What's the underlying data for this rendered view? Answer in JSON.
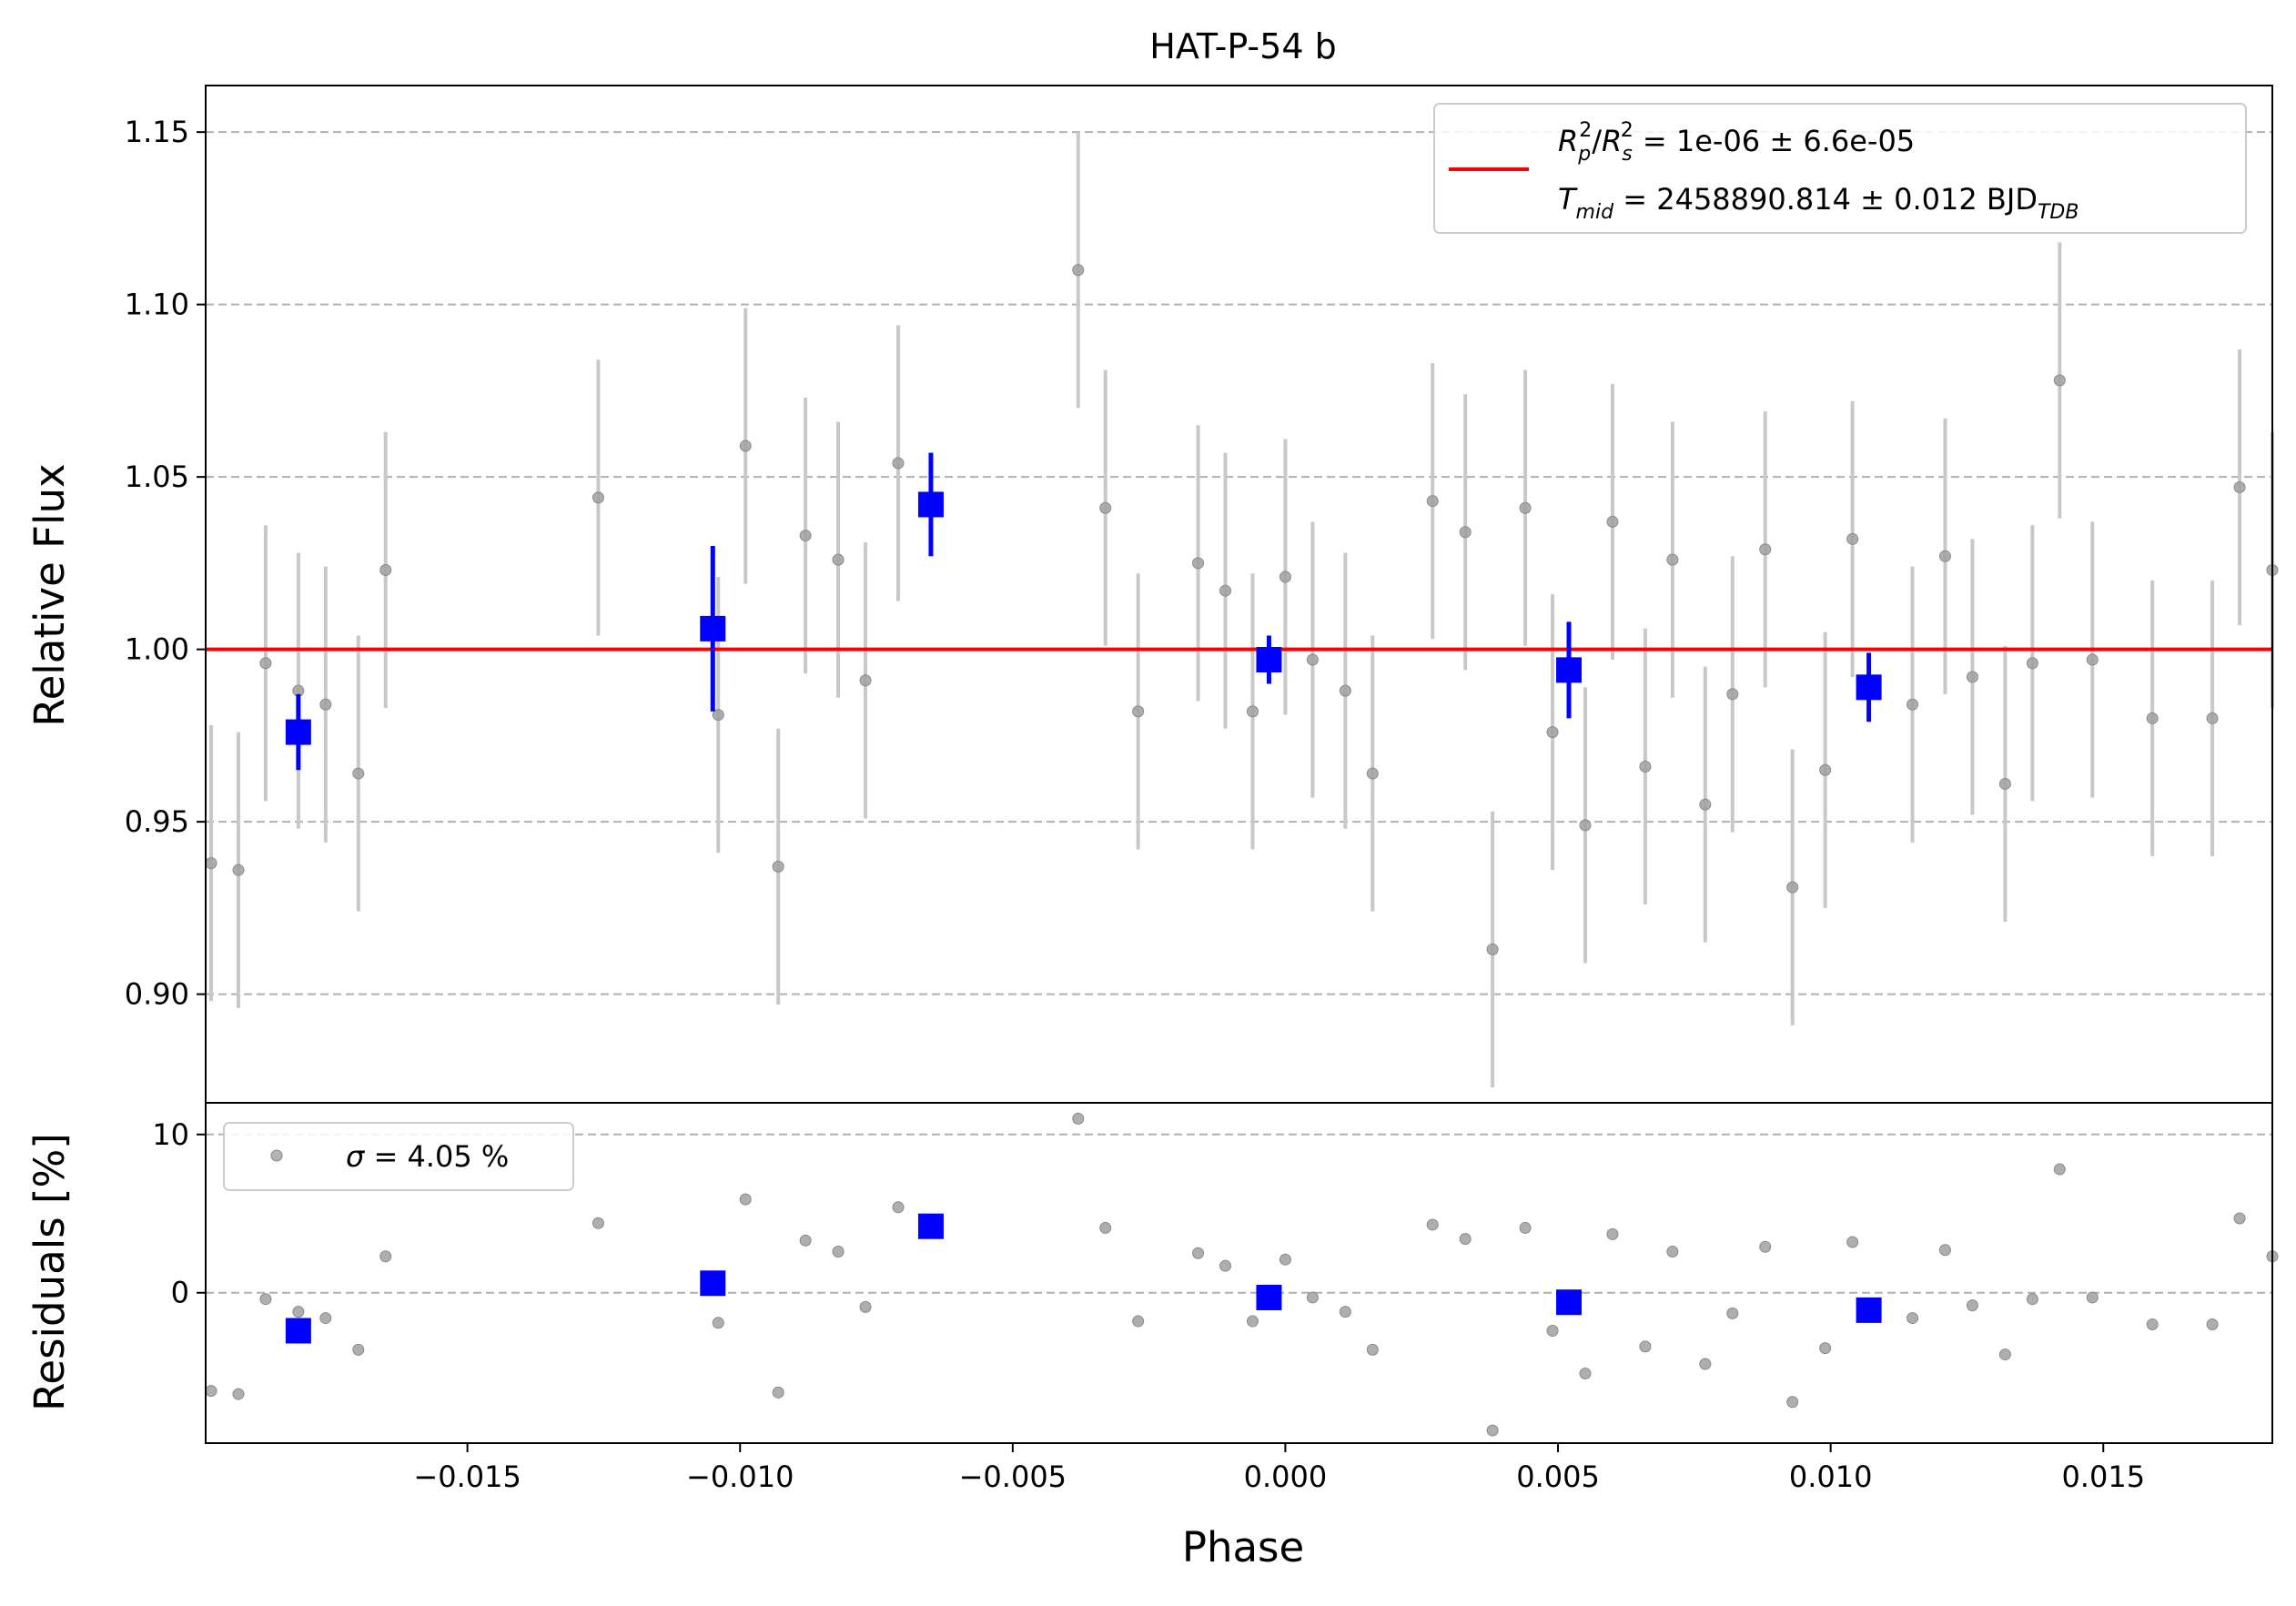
{
  "chart_data": [
    {
      "type": "scatter",
      "title": "HAT-P-54 b",
      "xlabel": "",
      "ylabel": "Relative Flux",
      "xlim": [
        -0.0198,
        0.0181
      ],
      "ylim": [
        0.8685,
        1.1635
      ],
      "grid": "horizontal dashed",
      "yticks": [
        "0.90",
        "0.95",
        "1.00",
        "1.05",
        "1.10",
        "1.15"
      ],
      "model_line": {
        "y": 1.0,
        "color": "#ff0000"
      },
      "legend": {
        "placement": "top-right",
        "line1": {
          "lhs": "R",
          "sub1": "p",
          "sup1": "2",
          "slash": "/",
          "sub2": "s",
          "sup2": "2",
          "rhs": " = 1e-06 ± 6.6e-05"
        },
        "line2": {
          "lhs": "T",
          "sub": "mid",
          "rhs": " = 2458890.814 ± 0.012 BJD",
          "unit_sub": "TDB"
        }
      },
      "raw_points": [
        {
          "x": -0.0197,
          "y": 0.938,
          "err": 0.04
        },
        {
          "x": -0.0192,
          "y": 0.936,
          "err": 0.04
        },
        {
          "x": -0.0187,
          "y": 0.996,
          "err": 0.04
        },
        {
          "x": -0.0181,
          "y": 0.988,
          "err": 0.04
        },
        {
          "x": -0.0176,
          "y": 0.984,
          "err": 0.04
        },
        {
          "x": -0.017,
          "y": 0.964,
          "err": 0.04
        },
        {
          "x": -0.0165,
          "y": 1.023,
          "err": 0.04
        },
        {
          "x": -0.0126,
          "y": 1.044,
          "err": 0.04
        },
        {
          "x": -0.0104,
          "y": 0.981,
          "err": 0.04
        },
        {
          "x": -0.0099,
          "y": 1.059,
          "err": 0.04
        },
        {
          "x": -0.0093,
          "y": 0.937,
          "err": 0.04
        },
        {
          "x": -0.0088,
          "y": 1.033,
          "err": 0.04
        },
        {
          "x": -0.0082,
          "y": 1.026,
          "err": 0.04
        },
        {
          "x": -0.0077,
          "y": 0.991,
          "err": 0.04
        },
        {
          "x": -0.0071,
          "y": 1.054,
          "err": 0.04
        },
        {
          "x": -0.0038,
          "y": 1.11,
          "err": 0.04
        },
        {
          "x": -0.0033,
          "y": 1.041,
          "err": 0.04
        },
        {
          "x": -0.0027,
          "y": 0.982,
          "err": 0.04
        },
        {
          "x": -0.0016,
          "y": 1.025,
          "err": 0.04
        },
        {
          "x": -0.0011,
          "y": 1.017,
          "err": 0.04
        },
        {
          "x": -0.0006,
          "y": 0.982,
          "err": 0.04
        },
        {
          "x": 0.0,
          "y": 1.021,
          "err": 0.04
        },
        {
          "x": 0.0005,
          "y": 0.997,
          "err": 0.04
        },
        {
          "x": 0.0011,
          "y": 0.988,
          "err": 0.04
        },
        {
          "x": 0.0016,
          "y": 0.964,
          "err": 0.04
        },
        {
          "x": 0.0027,
          "y": 1.043,
          "err": 0.04
        },
        {
          "x": 0.0033,
          "y": 1.034,
          "err": 0.04
        },
        {
          "x": 0.0038,
          "y": 0.913,
          "err": 0.04
        },
        {
          "x": 0.0044,
          "y": 1.041,
          "err": 0.04
        },
        {
          "x": 0.0049,
          "y": 0.976,
          "err": 0.04
        },
        {
          "x": 0.0055,
          "y": 0.949,
          "err": 0.04
        },
        {
          "x": 0.006,
          "y": 1.037,
          "err": 0.04
        },
        {
          "x": 0.0066,
          "y": 0.966,
          "err": 0.04
        },
        {
          "x": 0.0071,
          "y": 1.026,
          "err": 0.04
        },
        {
          "x": 0.0077,
          "y": 0.955,
          "err": 0.04
        },
        {
          "x": 0.0082,
          "y": 0.987,
          "err": 0.04
        },
        {
          "x": 0.0088,
          "y": 1.029,
          "err": 0.04
        },
        {
          "x": 0.0093,
          "y": 0.931,
          "err": 0.04
        },
        {
          "x": 0.0099,
          "y": 0.965,
          "err": 0.04
        },
        {
          "x": 0.0104,
          "y": 1.032,
          "err": 0.04
        },
        {
          "x": 0.0115,
          "y": 0.984,
          "err": 0.04
        },
        {
          "x": 0.0121,
          "y": 1.027,
          "err": 0.04
        },
        {
          "x": 0.0126,
          "y": 0.992,
          "err": 0.04
        },
        {
          "x": 0.0132,
          "y": 0.961,
          "err": 0.04
        },
        {
          "x": 0.0137,
          "y": 0.996,
          "err": 0.04
        },
        {
          "x": 0.0142,
          "y": 1.078,
          "err": 0.04
        },
        {
          "x": 0.0148,
          "y": 0.997,
          "err": 0.04
        },
        {
          "x": 0.0159,
          "y": 0.98,
          "err": 0.04
        },
        {
          "x": 0.017,
          "y": 0.98,
          "err": 0.04
        },
        {
          "x": 0.0175,
          "y": 1.047,
          "err": 0.04
        },
        {
          "x": 0.0181,
          "y": 1.023,
          "err": 0.04
        }
      ],
      "binned_points": [
        {
          "x": -0.0181,
          "y": 0.976,
          "err": 0.011
        },
        {
          "x": -0.0105,
          "y": 1.006,
          "err": 0.024
        },
        {
          "x": -0.0065,
          "y": 1.042,
          "err": 0.015
        },
        {
          "x": -0.0003,
          "y": 0.997,
          "err": 0.007
        },
        {
          "x": 0.0052,
          "y": 0.994,
          "err": 0.014
        },
        {
          "x": 0.0107,
          "y": 0.989,
          "err": 0.01
        }
      ]
    },
    {
      "type": "scatter",
      "title": "",
      "xlabel": "Phase",
      "ylabel": "Residuals [%]",
      "xlim": [
        -0.0198,
        0.0181
      ],
      "ylim": [
        -9.5,
        12.0
      ],
      "grid": "horizontal dashed",
      "yticks": [
        "0",
        "10"
      ],
      "xticks": [
        "−0.015",
        "−0.010",
        "−0.005",
        "0.000",
        "0.005",
        "0.010",
        "0.015"
      ],
      "xtick_values": [
        -0.015,
        -0.01,
        -0.005,
        0.0,
        0.005,
        0.01,
        0.015
      ],
      "legend": {
        "placement": "top-left",
        "sigma_symbol": "σ",
        "text": " = 4.05 %"
      },
      "raw_points": [
        {
          "x": -0.0197,
          "y": -6.2
        },
        {
          "x": -0.0192,
          "y": -6.4
        },
        {
          "x": -0.0187,
          "y": -0.4
        },
        {
          "x": -0.0181,
          "y": -1.2
        },
        {
          "x": -0.0176,
          "y": -1.6
        },
        {
          "x": -0.017,
          "y": -3.6
        },
        {
          "x": -0.0165,
          "y": 2.3
        },
        {
          "x": -0.0126,
          "y": 4.4
        },
        {
          "x": -0.0104,
          "y": -1.9
        },
        {
          "x": -0.0099,
          "y": 5.9
        },
        {
          "x": -0.0093,
          "y": -6.3
        },
        {
          "x": -0.0088,
          "y": 3.3
        },
        {
          "x": -0.0082,
          "y": 2.6
        },
        {
          "x": -0.0077,
          "y": -0.9
        },
        {
          "x": -0.0071,
          "y": 5.4
        },
        {
          "x": -0.0038,
          "y": 11.0
        },
        {
          "x": -0.0033,
          "y": 4.1
        },
        {
          "x": -0.0027,
          "y": -1.8
        },
        {
          "x": -0.0016,
          "y": 2.5
        },
        {
          "x": -0.0011,
          "y": 1.7
        },
        {
          "x": -0.0006,
          "y": -1.8
        },
        {
          "x": 0.0,
          "y": 2.1
        },
        {
          "x": 0.0005,
          "y": -0.3
        },
        {
          "x": 0.0011,
          "y": -1.2
        },
        {
          "x": 0.0016,
          "y": -3.6
        },
        {
          "x": 0.0027,
          "y": 4.3
        },
        {
          "x": 0.0033,
          "y": 3.4
        },
        {
          "x": 0.0038,
          "y": -8.7
        },
        {
          "x": 0.0044,
          "y": 4.1
        },
        {
          "x": 0.0049,
          "y": -2.4
        },
        {
          "x": 0.0055,
          "y": -5.1
        },
        {
          "x": 0.006,
          "y": 3.7
        },
        {
          "x": 0.0066,
          "y": -3.4
        },
        {
          "x": 0.0071,
          "y": 2.6
        },
        {
          "x": 0.0077,
          "y": -4.5
        },
        {
          "x": 0.0082,
          "y": -1.3
        },
        {
          "x": 0.0088,
          "y": 2.9
        },
        {
          "x": 0.0093,
          "y": -6.9
        },
        {
          "x": 0.0099,
          "y": -3.5
        },
        {
          "x": 0.0104,
          "y": 3.2
        },
        {
          "x": 0.0115,
          "y": -1.6
        },
        {
          "x": 0.0121,
          "y": 2.7
        },
        {
          "x": 0.0126,
          "y": -0.8
        },
        {
          "x": 0.0132,
          "y": -3.9
        },
        {
          "x": 0.0137,
          "y": -0.4
        },
        {
          "x": 0.0142,
          "y": 7.8
        },
        {
          "x": 0.0148,
          "y": -0.3
        },
        {
          "x": 0.0159,
          "y": -2.0
        },
        {
          "x": 0.017,
          "y": -2.0
        },
        {
          "x": 0.0175,
          "y": 4.7
        },
        {
          "x": 0.0181,
          "y": 2.3
        }
      ],
      "binned_points": [
        {
          "x": -0.0181,
          "y": -2.4
        },
        {
          "x": -0.0105,
          "y": 0.6
        },
        {
          "x": -0.0065,
          "y": 4.2
        },
        {
          "x": -0.0003,
          "y": -0.3
        },
        {
          "x": 0.0052,
          "y": -0.6
        },
        {
          "x": 0.0107,
          "y": -1.1
        }
      ]
    }
  ],
  "colors": {
    "raw": "#a0a0a0",
    "raw_err": "#c8c8c8",
    "binned": "#0000ff",
    "model": "#ff0000",
    "grid": "#b0b0b0"
  }
}
